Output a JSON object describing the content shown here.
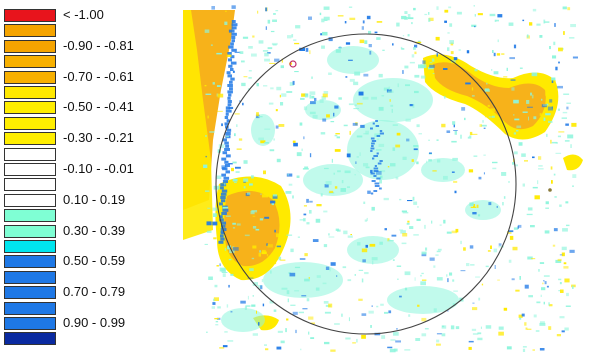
{
  "chart_data": {
    "type": "heatmap",
    "title": "",
    "xlabel": "",
    "ylabel": "",
    "legend_placement": "left",
    "legend": [
      {
        "label": "< -1.00",
        "color": "#e8141c"
      },
      {
        "label": "",
        "color": "#f5a400"
      },
      {
        "label": "-0.90 - -0.81",
        "color": "#f5a400"
      },
      {
        "label": "",
        "color": "#f7b000"
      },
      {
        "label": "-0.70 - -0.61",
        "color": "#f7b000"
      },
      {
        "label": "",
        "color": "#ffe800"
      },
      {
        "label": "-0.50 - -0.41",
        "color": "#ffee00"
      },
      {
        "label": "",
        "color": "#ffee00"
      },
      {
        "label": "-0.30 - -0.21",
        "color": "#ffee00"
      },
      {
        "label": "",
        "color": "#ffffff"
      },
      {
        "label": "-0.10 - -0.01",
        "color": "#ffffff"
      },
      {
        "label": "",
        "color": "#ffffff"
      },
      {
        "label": "0.10 - 0.19",
        "color": "#ffffff"
      },
      {
        "label": "",
        "color": "#7fffd4"
      },
      {
        "label": "0.30 - 0.39",
        "color": "#7fffd4"
      },
      {
        "label": "",
        "color": "#00e5ee"
      },
      {
        "label": "0.50 - 0.59",
        "color": "#1e78e6"
      },
      {
        "label": "",
        "color": "#1e78e6"
      },
      {
        "label": "0.70 - 0.79",
        "color": "#1e78e6"
      },
      {
        "label": "",
        "color": "#1e78e6"
      },
      {
        "label": "0.90 - 0.99",
        "color": "#1e78e6"
      },
      {
        "label": "",
        "color": "#0a2aa0"
      }
    ],
    "colors": {
      "orange": "#f7b21a",
      "yellow": "#ffea00",
      "cyan": "#8ef5dc",
      "blue": "#1e78e6",
      "circle": "#444444",
      "marker": "#c0306a"
    }
  }
}
